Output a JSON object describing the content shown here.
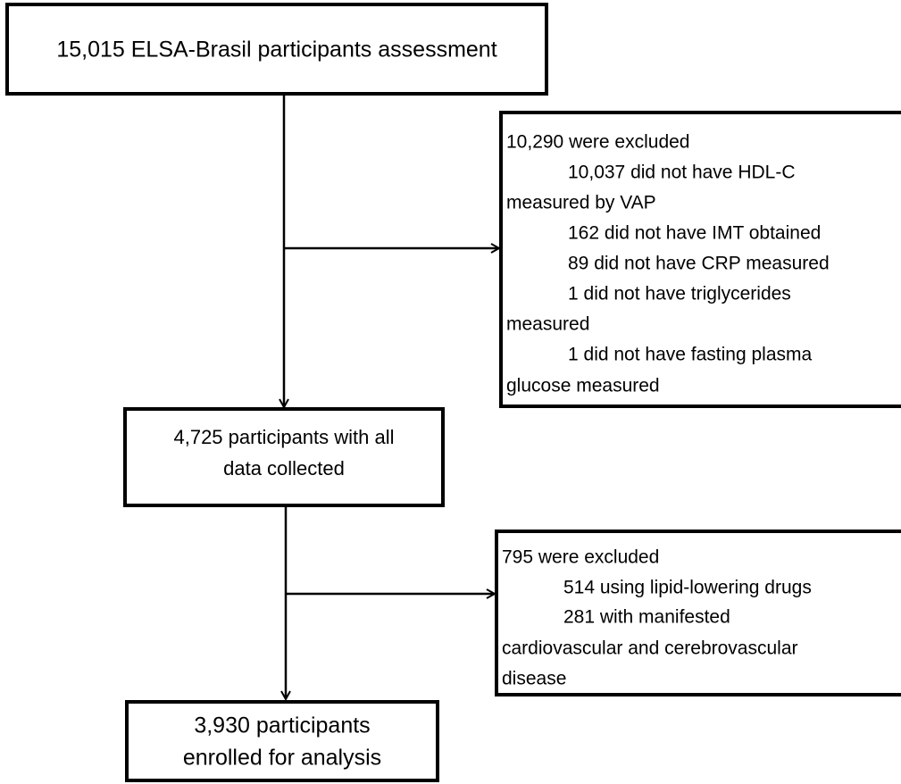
{
  "nodes": [
    {
      "lines": [
        "15,015 ELSA-Brasil participants assessment"
      ]
    },
    {
      "lines": [
        "10,290 were  excluded",
        "10,037 did not have HDL-C",
        "measured by VAP",
        "162 did not have IMT obtained",
        "89 did not have CRP measured",
        "1 did not have triglycerides",
        "measured",
        "1 did not have fasting plasma",
        "glucose measured"
      ]
    },
    {
      "lines": [
        "4,725 participants with all",
        "data collected"
      ]
    },
    {
      "lines": [
        "795 were  excluded",
        "514 using lipid-lowering drugs",
        "281 with manifested",
        "cardiovascular and cerebrovascular",
        "disease"
      ]
    },
    {
      "lines": [
        "3,930 participants",
        "enrolled for analysis"
      ]
    }
  ]
}
